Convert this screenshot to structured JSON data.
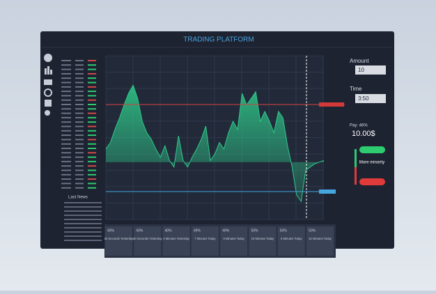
{
  "header": {
    "title": "TRADING PLATFORM"
  },
  "side": {
    "amount_label": "Amount",
    "amount": "10",
    "time_label": "Time",
    "time": "3:50",
    "pay": "Pay: 46%",
    "payout": "10.00$",
    "hint": "More minority"
  },
  "news": {
    "title": "Last News"
  },
  "tiles": [
    {
      "pct": "40%",
      "label": "30 Seconds Yesterday"
    },
    {
      "pct": "40%",
      "label": "60 Seconds Yesterday"
    },
    {
      "pct": "40%",
      "label": "3 Minutes Yesterday"
    },
    {
      "pct": "49%",
      "label": "7 Minutes Today"
    },
    {
      "pct": "49%",
      "label": "9 Minutes Today"
    },
    {
      "pct": "50%",
      "label": "10 Minutes Today"
    },
    {
      "pct": "50%",
      "label": "8 Minutes Today"
    },
    {
      "pct": "50%",
      "label": "10 Minutes Today"
    }
  ],
  "chart_data": {
    "type": "line",
    "color": "#2ecc8a",
    "ylim": [
      0,
      100
    ],
    "values": [
      43,
      47,
      55,
      62,
      70,
      77,
      82,
      74,
      60,
      53,
      49,
      43,
      38,
      45,
      36,
      32,
      51,
      36,
      32,
      38,
      43,
      49,
      57,
      36,
      40,
      47,
      43,
      53,
      60,
      55,
      77,
      70,
      74,
      78,
      60,
      66,
      60,
      53,
      66,
      62,
      45,
      32,
      15,
      11,
      30,
      32,
      34,
      35,
      36
    ]
  }
}
